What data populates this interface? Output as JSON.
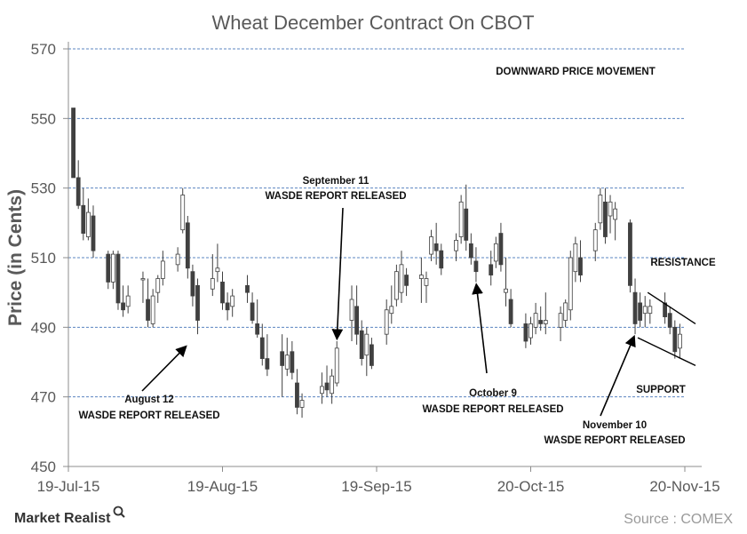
{
  "chart_data": {
    "type": "candlestick",
    "title": "Wheat December Contract On CBOT",
    "ylabel": "Price (in Cents)",
    "xlabel": "",
    "ylim": [
      450,
      570
    ],
    "yticks": [
      450,
      470,
      490,
      510,
      530,
      550,
      570
    ],
    "x_tick_labels": [
      "19-Jul-15",
      "19-Aug-15",
      "19-Sep-15",
      "20-Oct-15",
      "20-Nov-15"
    ],
    "x_range": [
      "2015-07-19",
      "2015-11-20"
    ],
    "grid": true,
    "candle_colors": {
      "up": "#ffffff",
      "down": "#404040",
      "edge": "#404040"
    },
    "candles": [
      {
        "d": "2015-07-20",
        "o": 553,
        "h": 553,
        "l": 533,
        "c": 533
      },
      {
        "d": "2015-07-21",
        "o": 533,
        "h": 538,
        "l": 524,
        "c": 525
      },
      {
        "d": "2015-07-22",
        "o": 525,
        "h": 530,
        "l": 515,
        "c": 517
      },
      {
        "d": "2015-07-23",
        "o": 516,
        "h": 527,
        "l": 515,
        "c": 523
      },
      {
        "d": "2015-07-24",
        "o": 522,
        "h": 525,
        "l": 510,
        "c": 512
      },
      {
        "d": "2015-07-27",
        "o": 511,
        "h": 512,
        "l": 501,
        "c": 503
      },
      {
        "d": "2015-07-28",
        "o": 503,
        "h": 512,
        "l": 501,
        "c": 511
      },
      {
        "d": "2015-07-29",
        "o": 511,
        "h": 512,
        "l": 495,
        "c": 497
      },
      {
        "d": "2015-07-30",
        "o": 497,
        "h": 502,
        "l": 493,
        "c": 495
      },
      {
        "d": "2015-07-31",
        "o": 496,
        "h": 502,
        "l": 494,
        "c": 499
      },
      {
        "d": "2015-08-03",
        "o": 504,
        "h": 506,
        "l": 497,
        "c": 504
      },
      {
        "d": "2015-08-04",
        "o": 498,
        "h": 504,
        "l": 490,
        "c": 492
      },
      {
        "d": "2015-08-05",
        "o": 491,
        "h": 501,
        "l": 490,
        "c": 499
      },
      {
        "d": "2015-08-06",
        "o": 500,
        "h": 505,
        "l": 497,
        "c": 504
      },
      {
        "d": "2015-08-07",
        "o": 504,
        "h": 512,
        "l": 502,
        "c": 509
      },
      {
        "d": "2015-08-10",
        "o": 508,
        "h": 513,
        "l": 506,
        "c": 511
      },
      {
        "d": "2015-08-11",
        "o": 518,
        "h": 530,
        "l": 517,
        "c": 528
      },
      {
        "d": "2015-08-12",
        "o": 520,
        "h": 522,
        "l": 504,
        "c": 507
      },
      {
        "d": "2015-08-13",
        "o": 506,
        "h": 508,
        "l": 496,
        "c": 499
      },
      {
        "d": "2015-08-14",
        "o": 502,
        "h": 504,
        "l": 488,
        "c": 492
      },
      {
        "d": "2015-08-17",
        "o": 501,
        "h": 511,
        "l": 499,
        "c": 504
      },
      {
        "d": "2015-08-18",
        "o": 506,
        "h": 514,
        "l": 503,
        "c": 507
      },
      {
        "d": "2015-08-19",
        "o": 503,
        "h": 506,
        "l": 495,
        "c": 497
      },
      {
        "d": "2015-08-20",
        "o": 497,
        "h": 500,
        "l": 492,
        "c": 495
      },
      {
        "d": "2015-08-21",
        "o": 496,
        "h": 501,
        "l": 493,
        "c": 499
      },
      {
        "d": "2015-08-24",
        "o": 502,
        "h": 505,
        "l": 497,
        "c": 500
      },
      {
        "d": "2015-08-25",
        "o": 497,
        "h": 500,
        "l": 491,
        "c": 492
      },
      {
        "d": "2015-08-26",
        "o": 491,
        "h": 498,
        "l": 487,
        "c": 488
      },
      {
        "d": "2015-08-27",
        "o": 487,
        "h": 491,
        "l": 479,
        "c": 481
      },
      {
        "d": "2015-08-28",
        "o": 481,
        "h": 488,
        "l": 476,
        "c": 478
      },
      {
        "d": "2015-08-31",
        "o": 483,
        "h": 488,
        "l": 470,
        "c": 479
      },
      {
        "d": "2015-09-01",
        "o": 478,
        "h": 487,
        "l": 476,
        "c": 482
      },
      {
        "d": "2015-09-02",
        "o": 483,
        "h": 486,
        "l": 475,
        "c": 477
      },
      {
        "d": "2015-09-03",
        "o": 474,
        "h": 478,
        "l": 465,
        "c": 467
      },
      {
        "d": "2015-09-04",
        "o": 467,
        "h": 471,
        "l": 464,
        "c": 469
      },
      {
        "d": "2015-09-08",
        "o": 471,
        "h": 477,
        "l": 468,
        "c": 473
      },
      {
        "d": "2015-09-09",
        "o": 474,
        "h": 479,
        "l": 470,
        "c": 472
      },
      {
        "d": "2015-09-10",
        "o": 471,
        "h": 478,
        "l": 468,
        "c": 476
      },
      {
        "d": "2015-09-11",
        "o": 474,
        "h": 486,
        "l": 473,
        "c": 484
      },
      {
        "d": "2015-09-14",
        "o": 492,
        "h": 502,
        "l": 486,
        "c": 498
      },
      {
        "d": "2015-09-15",
        "o": 496,
        "h": 502,
        "l": 485,
        "c": 488
      },
      {
        "d": "2015-09-16",
        "o": 489,
        "h": 492,
        "l": 479,
        "c": 481
      },
      {
        "d": "2015-09-17",
        "o": 482,
        "h": 490,
        "l": 476,
        "c": 488
      },
      {
        "d": "2015-09-18",
        "o": 485,
        "h": 487,
        "l": 478,
        "c": 479
      },
      {
        "d": "2015-09-21",
        "o": 488,
        "h": 498,
        "l": 485,
        "c": 495
      },
      {
        "d": "2015-09-22",
        "o": 494,
        "h": 502,
        "l": 491,
        "c": 496
      },
      {
        "d": "2015-09-23",
        "o": 498,
        "h": 508,
        "l": 496,
        "c": 506
      },
      {
        "d": "2015-09-24",
        "o": 500,
        "h": 512,
        "l": 497,
        "c": 508
      },
      {
        "d": "2015-09-25",
        "o": 505,
        "h": 507,
        "l": 499,
        "c": 502
      },
      {
        "d": "2015-09-28",
        "o": 504,
        "h": 510,
        "l": 497,
        "c": 505
      },
      {
        "d": "2015-09-29",
        "o": 502,
        "h": 506,
        "l": 497,
        "c": 504
      },
      {
        "d": "2015-09-30",
        "o": 511,
        "h": 518,
        "l": 509,
        "c": 516
      },
      {
        "d": "2015-10-01",
        "o": 514,
        "h": 520,
        "l": 508,
        "c": 512
      },
      {
        "d": "2015-10-02",
        "o": 512,
        "h": 514,
        "l": 505,
        "c": 507
      },
      {
        "d": "2015-10-05",
        "o": 512,
        "h": 517,
        "l": 509,
        "c": 515
      },
      {
        "d": "2015-10-06",
        "o": 516,
        "h": 528,
        "l": 514,
        "c": 526
      },
      {
        "d": "2015-10-07",
        "o": 524,
        "h": 531,
        "l": 512,
        "c": 515
      },
      {
        "d": "2015-10-08",
        "o": 514,
        "h": 517,
        "l": 508,
        "c": 510
      },
      {
        "d": "2015-10-09",
        "o": 509,
        "h": 513,
        "l": 503,
        "c": 506
      },
      {
        "d": "2015-10-12",
        "o": 508,
        "h": 512,
        "l": 502,
        "c": 505
      },
      {
        "d": "2015-10-13",
        "o": 509,
        "h": 516,
        "l": 507,
        "c": 514
      },
      {
        "d": "2015-10-14",
        "o": 517,
        "h": 520,
        "l": 506,
        "c": 508
      },
      {
        "d": "2015-10-15",
        "o": 500,
        "h": 510,
        "l": 496,
        "c": 501
      },
      {
        "d": "2015-10-16",
        "o": 498,
        "h": 501,
        "l": 490,
        "c": 491
      },
      {
        "d": "2015-10-19",
        "o": 491,
        "h": 494,
        "l": 484,
        "c": 486
      },
      {
        "d": "2015-10-20",
        "o": 487,
        "h": 493,
        "l": 485,
        "c": 491
      },
      {
        "d": "2015-10-21",
        "o": 490,
        "h": 497,
        "l": 488,
        "c": 494
      },
      {
        "d": "2015-10-22",
        "o": 492,
        "h": 496,
        "l": 489,
        "c": 491
      },
      {
        "d": "2015-10-23",
        "o": 491,
        "h": 500,
        "l": 488,
        "c": 492
      },
      {
        "d": "2015-10-26",
        "o": 490,
        "h": 496,
        "l": 486,
        "c": 494
      },
      {
        "d": "2015-10-27",
        "o": 492,
        "h": 498,
        "l": 490,
        "c": 497
      },
      {
        "d": "2015-10-28",
        "o": 495,
        "h": 512,
        "l": 492,
        "c": 510
      },
      {
        "d": "2015-10-29",
        "o": 506,
        "h": 516,
        "l": 503,
        "c": 514
      },
      {
        "d": "2015-10-30",
        "o": 510,
        "h": 515,
        "l": 503,
        "c": 505
      },
      {
        "d": "2015-11-02",
        "o": 512,
        "h": 520,
        "l": 509,
        "c": 518
      },
      {
        "d": "2015-11-03",
        "o": 520,
        "h": 530,
        "l": 518,
        "c": 528
      },
      {
        "d": "2015-11-04",
        "o": 526,
        "h": 530,
        "l": 514,
        "c": 516
      },
      {
        "d": "2015-11-05",
        "o": 522,
        "h": 528,
        "l": 517,
        "c": 526
      },
      {
        "d": "2015-11-06",
        "o": 521,
        "h": 526,
        "l": 515,
        "c": 524
      },
      {
        "d": "2015-11-09",
        "o": 520,
        "h": 521,
        "l": 500,
        "c": 502
      },
      {
        "d": "2015-11-10",
        "o": 500,
        "h": 504,
        "l": 488,
        "c": 491
      },
      {
        "d": "2015-11-11",
        "o": 497,
        "h": 500,
        "l": 490,
        "c": 492
      },
      {
        "d": "2015-11-12",
        "o": 494,
        "h": 499,
        "l": 490,
        "c": 496
      },
      {
        "d": "2015-11-13",
        "o": 494,
        "h": 498,
        "l": 491,
        "c": 496
      },
      {
        "d": "2015-11-16",
        "o": 497,
        "h": 500,
        "l": 491,
        "c": 493
      },
      {
        "d": "2015-11-17",
        "o": 494,
        "h": 496,
        "l": 488,
        "c": 490
      },
      {
        "d": "2015-11-18",
        "o": 490,
        "h": 492,
        "l": 481,
        "c": 483
      },
      {
        "d": "2015-11-19",
        "o": 484,
        "h": 491,
        "l": 481,
        "c": 488
      }
    ],
    "annotations": [
      {
        "lines": [
          "DOWNWARD PRICE MOVEMENT"
        ]
      },
      {
        "lines": [
          "September 11",
          "WASDE REPORT RELEASED"
        ]
      },
      {
        "lines": [
          "RESISTANCE"
        ]
      },
      {
        "lines": [
          "August 12",
          "WASDE REPORT RELEASED"
        ]
      },
      {
        "lines": [
          "October 9",
          "WASDE REPORT RELEASED"
        ]
      },
      {
        "lines": [
          "SUPPORT"
        ]
      },
      {
        "lines": [
          "November 10",
          "WASDE REPORT RELEASED"
        ]
      }
    ],
    "arrow_targets": [
      {
        "date": "2015-08-12",
        "price": 485
      },
      {
        "date": "2015-09-11",
        "price": 486
      },
      {
        "date": "2015-10-09",
        "price": 503
      },
      {
        "date": "2015-11-10",
        "price": 488
      }
    ],
    "trendlines": [
      {
        "name": "resistance",
        "from": {
          "date": "2015-11-12",
          "price": 500
        },
        "to": {
          "date": "2015-11-20",
          "price": 491
        }
      },
      {
        "name": "support",
        "from": {
          "date": "2015-11-10",
          "price": 487
        },
        "to": {
          "date": "2015-11-20",
          "price": 479
        }
      }
    ]
  },
  "footer": {
    "brand": "Market Realist",
    "source": "Source : COMEX"
  }
}
